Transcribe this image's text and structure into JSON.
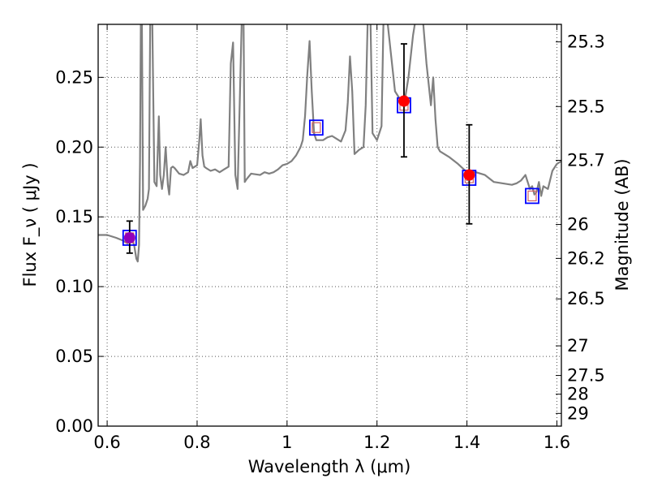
{
  "chart_data": {
    "type": "scatter",
    "title": "",
    "xlabel": "Wavelength  λ (μm)",
    "ylabel": "Flux  F_ν  ( μJy )",
    "ylabel_right": "Magnitude (AB)",
    "xlim": [
      0.58,
      1.61
    ],
    "ylim": [
      0.0,
      0.288
    ],
    "grid": true,
    "legend": "none",
    "x_ticks": [
      0.6,
      0.8,
      1.0,
      1.2,
      1.4,
      1.6
    ],
    "x_tick_labels": [
      "0.6",
      "0.8",
      "1",
      "1.2",
      "1.4",
      "1.6"
    ],
    "y_ticks": [
      0.0,
      0.05,
      0.1,
      0.15,
      0.2,
      0.25
    ],
    "y_tick_labels": [
      "0.00",
      "0.05",
      "0.10",
      "0.15",
      "0.20",
      "0.25"
    ],
    "right_ticks": [
      {
        "label": "25.3",
        "value": 25.3
      },
      {
        "label": "25.5",
        "value": 25.5
      },
      {
        "label": "25.7",
        "value": 25.7
      },
      {
        "label": "26",
        "value": 26.0
      },
      {
        "label": "26.2",
        "value": 26.2
      },
      {
        "label": "26.5",
        "value": 26.5
      },
      {
        "label": "27",
        "value": 27.0
      },
      {
        "label": "27.5",
        "value": 27.5
      },
      {
        "label": "28",
        "value": 28.0
      },
      {
        "label": "29",
        "value": 29.0
      }
    ],
    "colors": {
      "model": "#808080",
      "box": "#0000ff",
      "inner_square": "#d06060",
      "obs_point": "#ff0000",
      "blend_point": "#9400b8",
      "error_bar": "#000000",
      "grid": "#555555"
    },
    "series": [
      {
        "kind": "model_spectrum",
        "x": [
          0.58,
          0.6,
          0.62,
          0.635,
          0.645,
          0.655,
          0.66,
          0.665,
          0.668,
          0.671,
          0.673,
          0.675,
          0.677,
          0.68,
          0.685,
          0.69,
          0.693,
          0.696,
          0.7,
          0.705,
          0.71,
          0.715,
          0.718,
          0.722,
          0.726,
          0.73,
          0.735,
          0.738,
          0.742,
          0.746,
          0.75,
          0.76,
          0.77,
          0.78,
          0.785,
          0.79,
          0.8,
          0.805,
          0.808,
          0.812,
          0.816,
          0.82,
          0.83,
          0.84,
          0.85,
          0.86,
          0.87,
          0.875,
          0.88,
          0.885,
          0.89,
          0.9,
          0.903,
          0.906,
          0.91,
          0.92,
          0.94,
          0.95,
          0.96,
          0.97,
          0.98,
          0.99,
          1.0,
          1.01,
          1.02,
          1.03,
          1.035,
          1.04,
          1.045,
          1.05,
          1.055,
          1.06,
          1.065,
          1.07,
          1.08,
          1.09,
          1.1,
          1.11,
          1.12,
          1.13,
          1.135,
          1.14,
          1.145,
          1.15,
          1.16,
          1.17,
          1.175,
          1.18,
          1.185,
          1.19,
          1.2,
          1.21,
          1.215,
          1.22,
          1.23,
          1.24,
          1.25,
          1.26,
          1.27,
          1.28,
          1.29,
          1.3,
          1.31,
          1.32,
          1.325,
          1.33,
          1.335,
          1.34,
          1.36,
          1.38,
          1.4,
          1.42,
          1.44,
          1.46,
          1.48,
          1.5,
          1.51,
          1.52,
          1.53,
          1.54,
          1.545,
          1.55,
          1.555,
          1.56,
          1.565,
          1.57,
          1.58,
          1.59,
          1.6,
          1.61
        ],
        "y": [
          0.137,
          0.137,
          0.135,
          0.133,
          0.131,
          0.134,
          0.13,
          0.12,
          0.118,
          0.13,
          0.19,
          0.3,
          0.3,
          0.155,
          0.158,
          0.163,
          0.17,
          0.3,
          0.3,
          0.175,
          0.172,
          0.222,
          0.18,
          0.17,
          0.18,
          0.2,
          0.173,
          0.166,
          0.185,
          0.186,
          0.185,
          0.181,
          0.18,
          0.182,
          0.19,
          0.185,
          0.187,
          0.205,
          0.22,
          0.194,
          0.186,
          0.185,
          0.183,
          0.184,
          0.182,
          0.184,
          0.186,
          0.26,
          0.275,
          0.18,
          0.17,
          0.3,
          0.3,
          0.175,
          0.177,
          0.181,
          0.18,
          0.182,
          0.181,
          0.182,
          0.184,
          0.187,
          0.188,
          0.19,
          0.194,
          0.2,
          0.205,
          0.222,
          0.252,
          0.276,
          0.24,
          0.21,
          0.205,
          0.205,
          0.205,
          0.207,
          0.208,
          0.206,
          0.204,
          0.212,
          0.232,
          0.265,
          0.24,
          0.195,
          0.198,
          0.2,
          0.23,
          0.3,
          0.3,
          0.21,
          0.205,
          0.215,
          0.3,
          0.3,
          0.27,
          0.24,
          0.235,
          0.23,
          0.25,
          0.28,
          0.3,
          0.3,
          0.26,
          0.23,
          0.25,
          0.22,
          0.2,
          0.197,
          0.193,
          0.188,
          0.182,
          0.182,
          0.18,
          0.175,
          0.174,
          0.173,
          0.174,
          0.176,
          0.18,
          0.17,
          0.172,
          0.166,
          0.168,
          0.175,
          0.165,
          0.172,
          0.17,
          0.183,
          0.188,
          0.19
        ]
      },
      {
        "kind": "model_photometry",
        "x": [
          0.65,
          1.065,
          1.26,
          1.405,
          1.545
        ],
        "y": [
          0.135,
          0.214,
          0.23,
          0.178,
          0.165
        ]
      },
      {
        "kind": "observed",
        "x": [
          0.65,
          1.26,
          1.405
        ],
        "y": [
          0.135,
          0.233,
          0.18
        ],
        "y_err_low": [
          0.011,
          0.04,
          0.035
        ],
        "y_err_high": [
          0.012,
          0.041,
          0.036
        ],
        "colors": [
          "#9400b8",
          "#ff0000",
          "#ff0000"
        ]
      }
    ]
  }
}
